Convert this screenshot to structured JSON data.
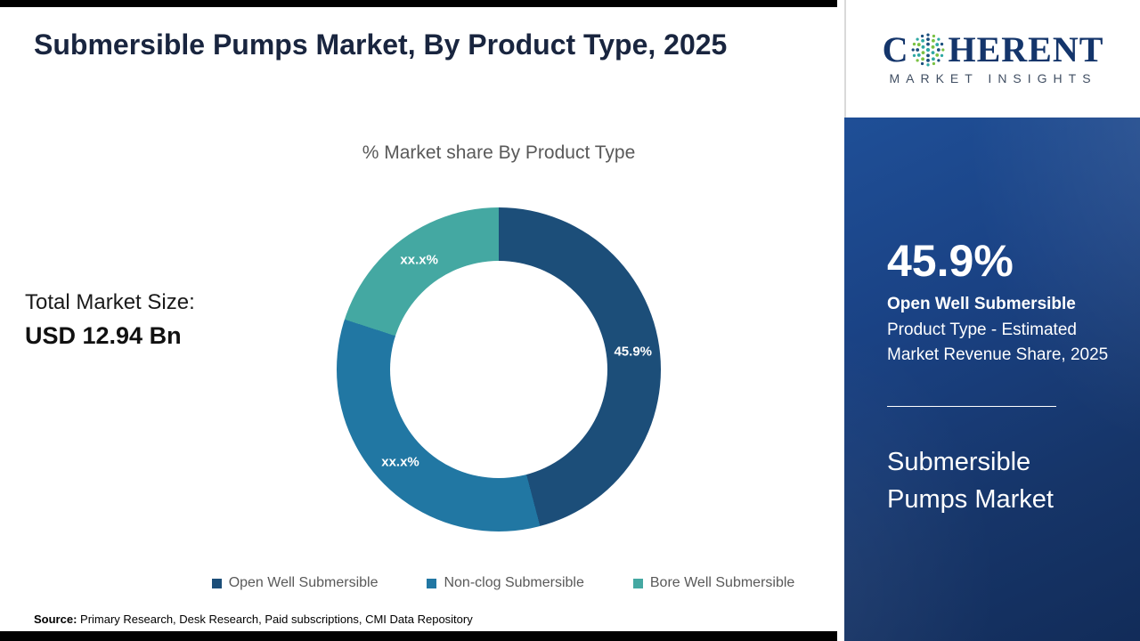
{
  "page": {
    "title": "Submersible Pumps Market, By Product Type, 2025"
  },
  "left_panel": {
    "chart_title": "% Market share By Product Type",
    "total_market_label": "Total Market Size:",
    "total_market_value": "USD 12.94 Bn",
    "source_label": "Source:",
    "source_text": " Primary Research, Desk Research, Paid subscriptions, CMI Data Repository"
  },
  "chart_data": {
    "type": "pie",
    "subtype": "donut",
    "title": "% Market share By Product Type",
    "categories": [
      "Open Well Submersible",
      "Non-clog Submersible",
      "Bore Well Submersible"
    ],
    "values": [
      45.9,
      34.1,
      20.0
    ],
    "display_labels": [
      "45.9%",
      "xx.x%",
      "xx.x%"
    ],
    "note": "Only the 45.9% segment is labeled numerically; other two segments are masked as xx.x% and their values are estimated from arc angles",
    "colors": [
      "#1c4e79",
      "#2177a3",
      "#44a8a2"
    ],
    "legend_position": "bottom",
    "start_angle_deg": 0,
    "direction": "clockwise"
  },
  "sidebar": {
    "logo_line1_left": "C",
    "logo_line1_right": "HERENT",
    "logo_line2": "MARKET INSIGHTS",
    "stat_value": "45.9%",
    "stat_highlight": " Open Well Submersible",
    "stat_description": " Product Type - Estimated Market Revenue Share, 2025",
    "market_name": "Submersible Pumps Market"
  }
}
